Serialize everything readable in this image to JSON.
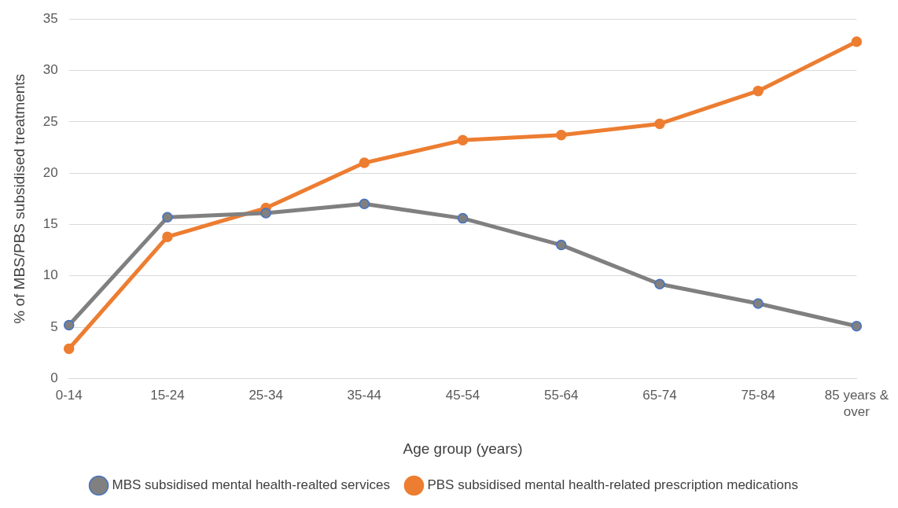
{
  "chart_data": {
    "type": "line",
    "xlabel": "Age group (years)",
    "ylabel": "% of MBS/PBS subsidised treatments",
    "categories": [
      "0-14",
      "15-24",
      "25-34",
      "35-44",
      "45-54",
      "55-64",
      "65-74",
      "75-84",
      "85 years & over"
    ],
    "series": [
      {
        "name": "MBS subsidised mental health-realted services",
        "color": "#808080",
        "values": [
          5.2,
          15.7,
          16.1,
          17.0,
          15.6,
          13.0,
          9.2,
          7.3,
          5.1
        ]
      },
      {
        "name": "PBS subsidised mental health-related prescription medications",
        "color": "#ed7d31",
        "values": [
          2.9,
          13.8,
          16.6,
          21.0,
          23.2,
          23.7,
          24.8,
          28.0,
          32.8
        ]
      }
    ],
    "ylim": [
      0,
      35
    ],
    "yticks": [
      0,
      5,
      10,
      15,
      20,
      25,
      30,
      35
    ],
    "grid": "y",
    "legend": "bottom",
    "marker": "circle",
    "line_style": "solid"
  }
}
